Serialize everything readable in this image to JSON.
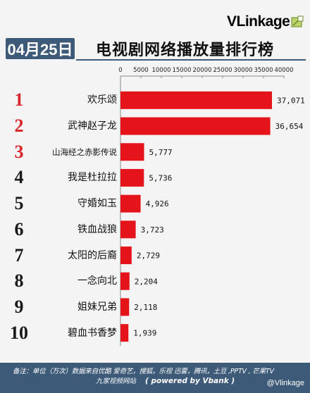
{
  "brand": {
    "logo_text": "VLinkage",
    "color": "#d8232a"
  },
  "header": {
    "date": "04月25日",
    "title": "电视剧网络播放量排行榜",
    "accent": "#3d5a78"
  },
  "chart_data": {
    "type": "bar",
    "orientation": "horizontal",
    "title": "电视剧网络播放量排行榜",
    "ranks": [
      "1",
      "2",
      "3",
      "4",
      "5",
      "6",
      "7",
      "8",
      "9",
      "10"
    ],
    "categories": [
      "欢乐颂",
      "武神赵子龙",
      "山海经之赤影传说",
      "我是杜拉拉",
      "守婚如玉",
      "铁血战狼",
      "太阳的后裔",
      "一念向北",
      "姐妹兄弟",
      "碧血书香梦"
    ],
    "values": [
      37071,
      36654,
      5777,
      5736,
      4926,
      3723,
      2729,
      2204,
      2118,
      1939
    ],
    "value_labels": [
      "37,071",
      "36,654",
      "5,777",
      "5,736",
      "4,926",
      "3,723",
      "2,729",
      "2,204",
      "2,118",
      "1,939"
    ],
    "xlim": [
      0,
      40000
    ],
    "xticks": [
      "0",
      "5000",
      "10000",
      "15000",
      "20000",
      "25000",
      "30000",
      "35000",
      "40000"
    ],
    "axis_position": "top",
    "bar_color": "#e5141b",
    "grid": false
  },
  "footer": {
    "line1": "备注：单位（万次）数据来自优酷 爱奇艺，搜狐，乐视  迅雷，腾讯，土豆 ,PPTV , 芒果TV",
    "line2": "九家视频网站",
    "powered": "( powered by Vbank )",
    "watermark": "@Vlinkage"
  }
}
